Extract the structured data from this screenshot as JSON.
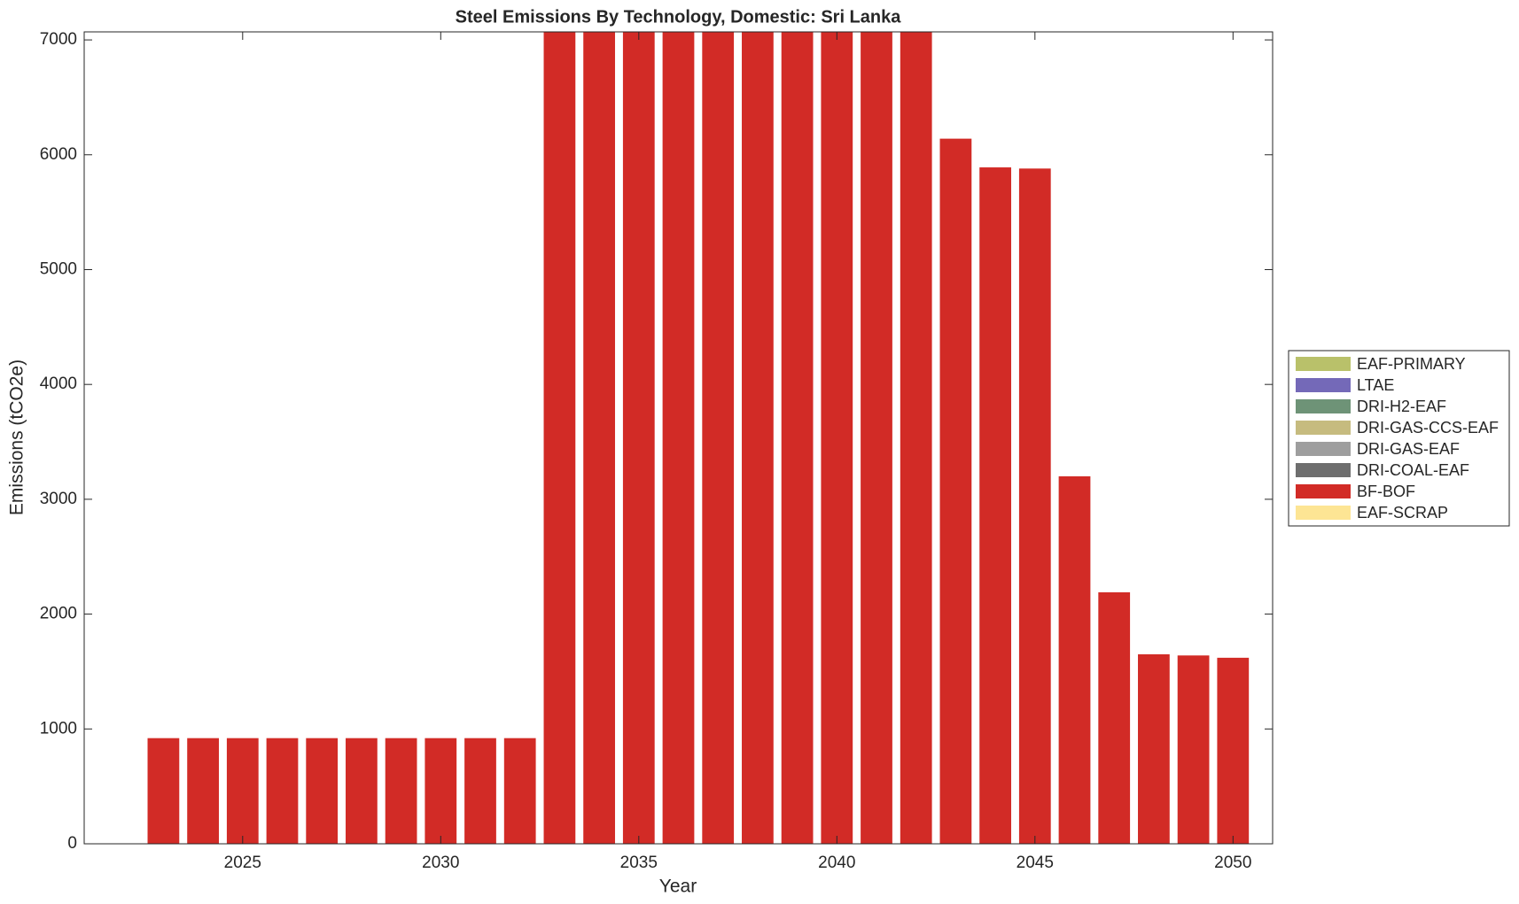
{
  "chart_data": {
    "type": "stacked-bar",
    "title": "Steel Emissions By Technology, Domestic: Sri Lanka",
    "xlabel": "Year",
    "ylabel": "Emissions (tCO2e)",
    "x": [
      2023,
      2024,
      2025,
      2026,
      2027,
      2028,
      2029,
      2030,
      2031,
      2032,
      2033,
      2034,
      2035,
      2036,
      2037,
      2038,
      2039,
      2040,
      2041,
      2042,
      2043,
      2044,
      2045,
      2046,
      2047,
      2048,
      2049,
      2050
    ],
    "series": [
      {
        "name": "EAF-PRIMARY",
        "color": "#b9c16a",
        "values": [
          0,
          0,
          0,
          0,
          0,
          0,
          0,
          0,
          0,
          0,
          0,
          0,
          0,
          0,
          0,
          0,
          0,
          0,
          0,
          0,
          0,
          0,
          0,
          0,
          0,
          0,
          0,
          0
        ]
      },
      {
        "name": "LTAE",
        "color": "#7469b8",
        "values": [
          0,
          0,
          0,
          0,
          0,
          0,
          0,
          0,
          0,
          0,
          0,
          0,
          0,
          0,
          0,
          0,
          0,
          0,
          0,
          0,
          0,
          0,
          0,
          0,
          0,
          0,
          0,
          0
        ]
      },
      {
        "name": "DRI-H2-EAF",
        "color": "#6e9377",
        "values": [
          0,
          0,
          0,
          0,
          0,
          0,
          0,
          0,
          0,
          0,
          0,
          0,
          0,
          0,
          0,
          0,
          0,
          0,
          0,
          0,
          0,
          0,
          0,
          0,
          0,
          0,
          0,
          0
        ]
      },
      {
        "name": "DRI-GAS-CCS-EAF",
        "color": "#c6bb7f",
        "values": [
          0,
          0,
          0,
          0,
          0,
          0,
          0,
          0,
          0,
          0,
          0,
          0,
          0,
          0,
          0,
          0,
          0,
          0,
          0,
          0,
          0,
          0,
          0,
          0,
          0,
          0,
          0,
          0
        ]
      },
      {
        "name": "DRI-GAS-EAF",
        "color": "#9e9e9e",
        "values": [
          0,
          0,
          0,
          0,
          0,
          0,
          0,
          0,
          0,
          0,
          0,
          0,
          0,
          0,
          0,
          0,
          0,
          0,
          0,
          0,
          0,
          0,
          0,
          0,
          0,
          0,
          0,
          0
        ]
      },
      {
        "name": "DRI-COAL-EAF",
        "color": "#6e6e6e",
        "values": [
          0,
          0,
          0,
          0,
          0,
          0,
          0,
          0,
          0,
          0,
          0,
          0,
          0,
          0,
          0,
          0,
          0,
          0,
          0,
          0,
          0,
          0,
          0,
          0,
          0,
          0,
          0,
          0
        ]
      },
      {
        "name": "BF-BOF",
        "color": "#d22b26",
        "values": [
          920,
          920,
          920,
          920,
          920,
          920,
          920,
          920,
          920,
          920,
          7500,
          7500,
          7500,
          7500,
          7500,
          7500,
          7500,
          7500,
          7500,
          7500,
          6140,
          5890,
          5880,
          3200,
          2190,
          1650,
          1640,
          1620
        ]
      },
      {
        "name": "EAF-SCRAP",
        "color": "#fde594",
        "values": [
          0,
          0,
          0,
          0,
          0,
          0,
          0,
          0,
          0,
          0,
          0,
          0,
          0,
          0,
          0,
          0,
          0,
          0,
          0,
          0,
          0,
          0,
          0,
          0,
          0,
          0,
          0,
          0
        ]
      }
    ],
    "xlim": [
      2021,
      2051
    ],
    "xticks": [
      2025,
      2030,
      2035,
      2040,
      2045,
      2050
    ],
    "ylim": [
      0,
      7070
    ],
    "yticks": [
      0,
      1000,
      2000,
      3000,
      4000,
      5000,
      6000,
      7000
    ],
    "legend": "outside-right"
  }
}
